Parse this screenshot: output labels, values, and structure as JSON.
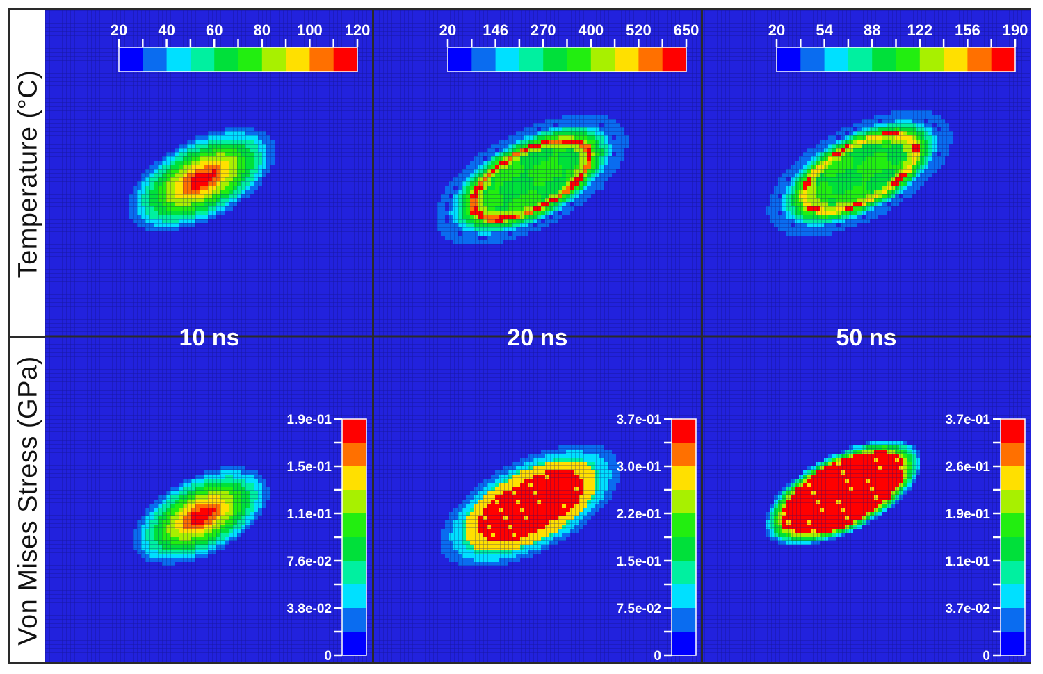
{
  "chart_data": {
    "type": "heatmap",
    "title": "",
    "layout": "2 rows x 3 columns",
    "row_labels": [
      "Temperature (°C)",
      "Von Mises Stress (GPa)"
    ],
    "column_labels": [
      "10 ns",
      "20 ns",
      "50 ns"
    ],
    "background_color": "#2222dd",
    "colormap": [
      "#0000ff",
      "#0a6cf0",
      "#00e0ff",
      "#00f0a0",
      "#00e03a",
      "#22ee10",
      "#a8f000",
      "#ffe000",
      "#ff7000",
      "#ff0000"
    ],
    "panels": [
      {
        "id": "temperature-10ns",
        "quantity": "Temperature",
        "unit": "°C",
        "time": "10 ns",
        "colorbar": {
          "orientation": "horizontal",
          "min": 20,
          "max": 120,
          "tick_labels": [
            "20",
            "40",
            "60",
            "80",
            "100",
            "120"
          ]
        },
        "field": {
          "shape": "tilted ellipse, peak at center",
          "peak_level": 1.0,
          "pattern": "gaussian-peak",
          "hotspots": 2
        }
      },
      {
        "id": "temperature-20ns",
        "quantity": "Temperature",
        "unit": "°C",
        "time": "20 ns",
        "colorbar": {
          "orientation": "horizontal",
          "min": 20,
          "max": 650,
          "tick_labels": [
            "20",
            "146",
            "270",
            "400",
            "520",
            "650"
          ]
        },
        "field": {
          "shape": "tilted ellipse, hot ring at rim, green interior",
          "peak_level": 1.0,
          "pattern": "hot-rim"
        }
      },
      {
        "id": "temperature-50ns",
        "quantity": "Temperature",
        "unit": "°C",
        "time": "50 ns",
        "colorbar": {
          "orientation": "horizontal",
          "min": 20,
          "max": 190,
          "tick_labels": [
            "20",
            "54",
            "88",
            "122",
            "156",
            "190"
          ]
        },
        "field": {
          "shape": "tilted ellipse, scattered hot spots at rim",
          "peak_level": 1.0,
          "pattern": "hot-rim-spots"
        }
      },
      {
        "id": "stress-10ns",
        "quantity": "Von Mises Stress",
        "unit": "GPa",
        "time": "10 ns",
        "colorbar": {
          "orientation": "vertical",
          "min": 0,
          "max": 0.19,
          "tick_labels": [
            "1.9e-01",
            "1.5e-01",
            "1.1e-01",
            "7.6e-02",
            "3.8e-02",
            "0"
          ]
        },
        "field": {
          "shape": "tilted ellipse, two central peaks",
          "peak_level": 1.0,
          "pattern": "gaussian-peak",
          "hotspots": 2
        }
      },
      {
        "id": "stress-20ns",
        "quantity": "Von Mises Stress",
        "unit": "GPa",
        "time": "20 ns",
        "colorbar": {
          "orientation": "vertical",
          "min": 0,
          "max": 0.37,
          "tick_labels": [
            "3.7e-01",
            "3.0e-01",
            "2.2e-01",
            "1.5e-01",
            "7.5e-02",
            "0"
          ]
        },
        "field": {
          "shape": "tilted ellipse, saturated red core in vertical bands",
          "peak_level": 1.0,
          "pattern": "saturated-bands"
        }
      },
      {
        "id": "stress-50ns",
        "quantity": "Von Mises Stress",
        "unit": "GPa",
        "time": "50 ns",
        "colorbar": {
          "orientation": "vertical",
          "min": 0,
          "max": 0.37,
          "tick_labels": [
            "3.7e-01",
            "2.6e-01",
            "1.9e-01",
            "1.1e-01",
            "3.7e-02",
            "0"
          ]
        },
        "field": {
          "shape": "tilted ellipse, saturated red core with sharp edge",
          "peak_level": 1.0,
          "pattern": "saturated-sharp"
        }
      }
    ]
  }
}
